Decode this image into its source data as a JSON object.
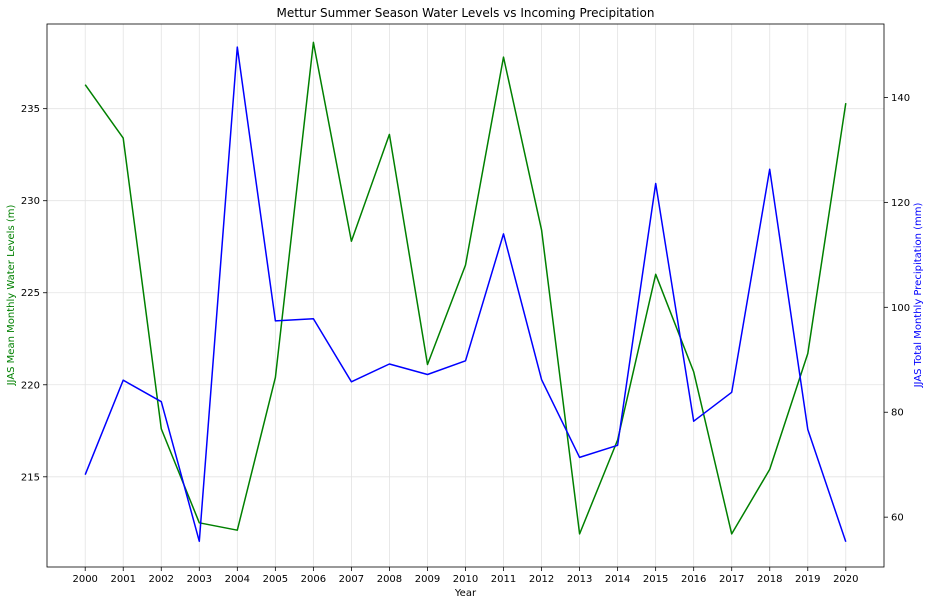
{
  "chart_data": {
    "type": "line",
    "title": "Mettur Summer Season Water Levels vs Incoming Precipitation",
    "xlabel": "Year",
    "ylabel_left": "JJAS Mean Monthly Water Levels (m)",
    "ylabel_right": "JJAS Total Monthly Precipitation (mm)",
    "x": [
      2000,
      2001,
      2002,
      2003,
      2004,
      2005,
      2006,
      2007,
      2008,
      2009,
      2010,
      2011,
      2012,
      2013,
      2014,
      2015,
      2016,
      2017,
      2018,
      2019,
      2020
    ],
    "y_left_ticks": [
      215,
      220,
      225,
      230,
      235
    ],
    "y_right_ticks": [
      60,
      80,
      100,
      120,
      140
    ],
    "ylim_left": [
      210.1,
      239.6
    ],
    "ylim_right": [
      50.5,
      154
    ],
    "grid": true,
    "series": [
      {
        "name": "JJAS Mean Monthly Water Levels (m)",
        "axis": "left",
        "color": "#008000",
        "values": [
          236.3,
          233.4,
          217.6,
          212.5,
          212.1,
          220.4,
          238.6,
          227.8,
          233.6,
          221.1,
          226.5,
          237.8,
          228.4,
          211.9,
          217.0,
          226.0,
          220.7,
          211.9,
          215.4,
          221.7,
          235.3
        ]
      },
      {
        "name": "JJAS Total Monthly Precipitation (mm)",
        "axis": "right",
        "color": "#0000ff",
        "values": [
          68.1,
          86.1,
          82.0,
          55.4,
          149.6,
          97.4,
          97.8,
          85.8,
          89.2,
          87.2,
          89.8,
          114.0,
          86.2,
          71.4,
          73.7,
          123.6,
          78.3,
          83.8,
          126.3,
          76.7,
          55.3
        ]
      }
    ]
  }
}
